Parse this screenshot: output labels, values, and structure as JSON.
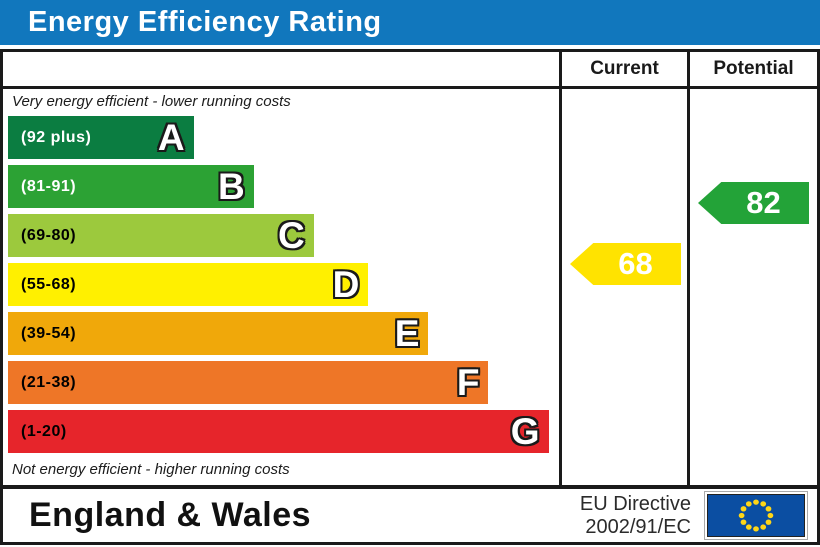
{
  "title": "Energy Efficiency Rating",
  "columns": {
    "current": "Current",
    "potential": "Potential"
  },
  "scale": {
    "top_note": "Very energy efficient - lower running costs",
    "bottom_note": "Not energy efficient - higher running costs",
    "bands": [
      {
        "letter": "A",
        "range": "(92 plus)",
        "color": "#0b7d41",
        "text_color": "#ffffff",
        "width_pct": 34
      },
      {
        "letter": "B",
        "range": "(81-91)",
        "color": "#2ca234",
        "text_color": "#ffffff",
        "width_pct": 45
      },
      {
        "letter": "C",
        "range": "(69-80)",
        "color": "#9cc93d",
        "text_color": "#000000",
        "width_pct": 56
      },
      {
        "letter": "D",
        "range": "(55-68)",
        "color": "#fff000",
        "text_color": "#000000",
        "width_pct": 66
      },
      {
        "letter": "E",
        "range": "(39-54)",
        "color": "#f0a80a",
        "text_color": "#000000",
        "width_pct": 77
      },
      {
        "letter": "F",
        "range": "(21-38)",
        "color": "#ee7627",
        "text_color": "#000000",
        "width_pct": 88
      },
      {
        "letter": "G",
        "range": "(1-20)",
        "color": "#e6252b",
        "text_color": "#000000",
        "width_pct": 99
      }
    ]
  },
  "ratings": {
    "current": {
      "value": "68",
      "color": "#ffe300"
    },
    "potential": {
      "value": "82",
      "color": "#23a338"
    }
  },
  "footer": {
    "region": "England & Wales",
    "directive_line1": "EU Directive",
    "directive_line2": "2002/91/EC",
    "eu_flag": {
      "background": "#0b4ea2",
      "star_color": "#ffd617"
    }
  },
  "theme": {
    "title_bar_color": "#1177bd",
    "border_color": "#1a1a1a"
  },
  "chart_data": {
    "type": "bar",
    "title": "Energy Efficiency Rating",
    "categories": [
      "A",
      "B",
      "C",
      "D",
      "E",
      "F",
      "G"
    ],
    "band_ranges": [
      "92 plus",
      "81-91",
      "69-80",
      "55-68",
      "39-54",
      "21-38",
      "1-20"
    ],
    "band_colors": [
      "#0b7d41",
      "#2ca234",
      "#9cc93d",
      "#fff000",
      "#f0a80a",
      "#ee7627",
      "#e6252b"
    ],
    "series": [
      {
        "name": "Current",
        "value": 68,
        "band": "D"
      },
      {
        "name": "Potential",
        "value": 82,
        "band": "B"
      }
    ],
    "axis_note_top": "Very energy efficient - lower running costs",
    "axis_note_bottom": "Not energy efficient - higher running costs",
    "value_range": [
      1,
      100
    ],
    "region": "England & Wales",
    "directive": "EU Directive 2002/91/EC"
  }
}
